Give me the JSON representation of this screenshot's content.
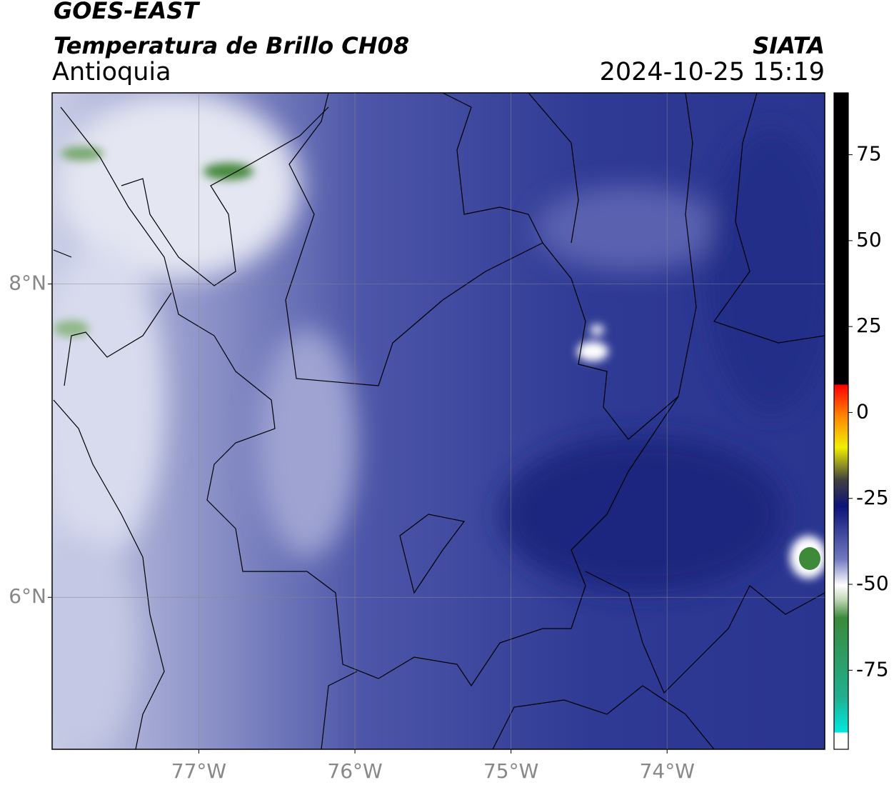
{
  "header": {
    "title": "GOES-EAST",
    "subtitle": "Temperatura de Brillo CH08",
    "region": "Antioquia",
    "agency": "SIATA",
    "timestamp": "2024-10-25 15:19"
  },
  "map": {
    "lon_range": [
      -77.94,
      -72.99
    ],
    "lat_range": [
      5.03,
      9.22
    ],
    "lon_ticks": [
      {
        "value": -77,
        "label": "77°W"
      },
      {
        "value": -76,
        "label": "76°W"
      },
      {
        "value": -75,
        "label": "75°W"
      },
      {
        "value": -74,
        "label": "74°W"
      }
    ],
    "lat_ticks": [
      {
        "value": 8,
        "label": "8°N"
      },
      {
        "value": 6,
        "label": "6°N"
      }
    ],
    "grid": true
  },
  "colorbar": {
    "range": [
      -98,
      93
    ],
    "ticks": [
      75,
      50,
      25,
      0,
      -25,
      -50,
      -75
    ]
  }
}
